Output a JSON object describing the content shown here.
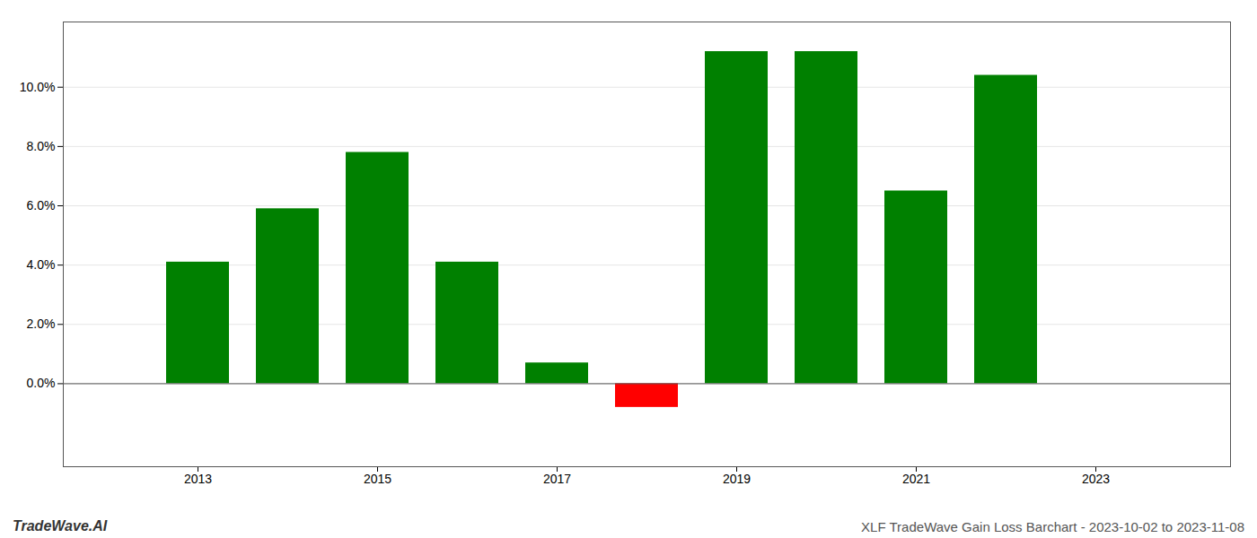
{
  "chart_data": {
    "type": "bar",
    "title": "XLF TradeWave Gain Loss Barchart - 2023-10-02 to 2023-11-08",
    "annotations": [
      "TradeWave.AI"
    ],
    "x": [
      2013,
      2014,
      2015,
      2016,
      2017,
      2018,
      2019,
      2020,
      2021,
      2022
    ],
    "values": [
      0.041,
      0.059,
      0.078,
      0.041,
      0.007,
      -0.008,
      0.112,
      0.112,
      0.065,
      0.104
    ],
    "colors": [
      "#008000",
      "#008000",
      "#008000",
      "#008000",
      "#008000",
      "#ff0000",
      "#008000",
      "#008000",
      "#008000",
      "#008000"
    ],
    "xlim": [
      2011.5,
      2024.5
    ],
    "xticks": [
      2013,
      2015,
      2017,
      2019,
      2021,
      2023
    ],
    "ylim": [
      -0.028,
      0.122
    ],
    "yticks": [
      {
        "value": 0.0,
        "label": "0.0%"
      },
      {
        "value": 0.02,
        "label": "2.0%"
      },
      {
        "value": 0.04,
        "label": "4.0%"
      },
      {
        "value": 0.06,
        "label": "6.0%"
      },
      {
        "value": 0.08,
        "label": "8.0%"
      },
      {
        "value": 0.1,
        "label": "10.0%"
      }
    ],
    "grid": true
  }
}
